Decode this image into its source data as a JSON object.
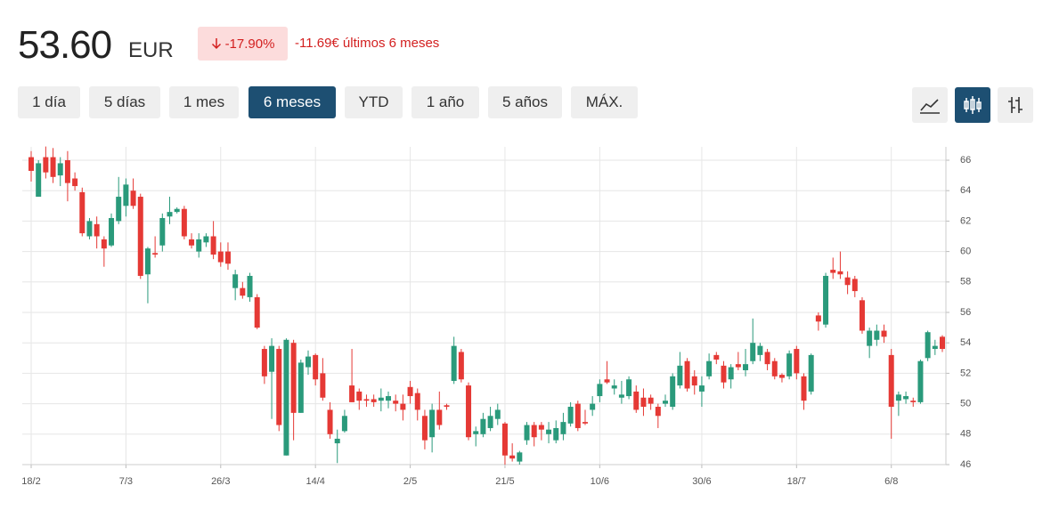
{
  "header": {
    "price": "53.60",
    "currency": "EUR",
    "change_pct": "-17.90%",
    "change_abs": "-11.69€ últimos 6 meses"
  },
  "range_buttons": [
    "1 día",
    "5 días",
    "1 mes",
    "6 meses",
    "YTD",
    "1 año",
    "5 años",
    "MÁX."
  ],
  "chart_data": {
    "type": "candlestick",
    "up_color": "#2a9a7b",
    "down_color": "#e53935",
    "grid": true,
    "categories": [
      "18/2",
      null,
      null,
      null,
      null,
      null,
      null,
      null,
      null,
      null,
      null,
      null,
      null,
      "7/3",
      null,
      null,
      null,
      null,
      null,
      null,
      null,
      null,
      null,
      null,
      null,
      null,
      "26/3",
      null,
      null,
      null,
      null,
      null,
      null,
      null,
      null,
      null,
      null,
      null,
      null,
      "14/4",
      null,
      null,
      null,
      null,
      null,
      null,
      null,
      null,
      null,
      null,
      null,
      null,
      "2/5",
      null,
      null,
      null,
      null,
      null,
      null,
      null,
      null,
      null,
      null,
      null,
      null,
      "21/5",
      null,
      null,
      null,
      null,
      null,
      null,
      null,
      null,
      null,
      null,
      null,
      null,
      "10/6",
      null,
      null,
      null,
      null,
      null,
      null,
      null,
      null,
      null,
      null,
      null,
      null,
      null,
      "30/6",
      null,
      null,
      null,
      null,
      null,
      null,
      null,
      null,
      null,
      null,
      null,
      null,
      "18/7",
      null,
      null,
      null,
      null,
      null,
      null,
      null,
      null,
      null,
      null,
      null,
      null,
      "6/8",
      null,
      null,
      null,
      null,
      null,
      null,
      null
    ],
    "open": [
      66.2,
      63.6,
      66.2,
      66.2,
      65.0,
      66.0,
      64.8,
      63.9,
      61.0,
      61.8,
      60.8,
      60.4,
      62.0,
      63.0,
      64.0,
      63.6,
      58.5,
      59.9,
      60.4,
      62.3,
      62.6,
      62.8,
      60.8,
      60.0,
      60.6,
      61.0,
      60.0,
      60.0,
      57.6,
      57.6,
      57.0,
      57.0,
      53.6,
      52.1,
      53.6,
      46.6,
      54.0,
      49.4,
      52.4,
      53.2,
      52.0,
      49.6,
      47.4,
      48.2,
      51.2,
      50.8,
      50.3,
      50.3,
      50.2,
      50.2,
      50.2,
      50.0,
      51.1,
      50.7,
      49.2,
      47.8,
      49.6,
      49.9,
      51.5,
      53.4,
      51.2,
      48.0,
      48.0,
      48.4,
      49.0,
      48.7,
      46.6,
      46.2,
      47.6,
      48.6,
      48.6,
      48.0,
      47.6,
      48.0,
      48.7,
      50.0,
      48.8,
      49.6,
      50.5,
      51.6,
      51.0,
      50.4,
      50.5,
      50.8,
      50.4,
      50.4,
      49.8,
      50.0,
      49.8,
      51.2,
      52.8,
      51.8,
      50.8,
      51.8,
      53.2,
      52.5,
      51.6,
      52.6,
      52.2,
      52.8,
      53.2,
      53.4,
      52.8,
      51.9,
      51.8,
      53.6,
      51.8,
      50.8,
      55.8,
      55.2,
      58.8,
      58.7,
      58.3,
      58.2,
      56.8,
      53.8,
      54.2,
      54.8,
      53.2,
      50.2,
      50.3,
      50.2,
      50.1,
      53.0,
      53.6,
      54.4
    ],
    "high": [
      66.6,
      66.0,
      66.9,
      66.8,
      66.2,
      66.6,
      65.2,
      64.2,
      62.2,
      62.3,
      61.0,
      62.5,
      64.9,
      64.8,
      64.8,
      63.8,
      60.3,
      61.0,
      62.5,
      63.6,
      62.9,
      63.0,
      61.2,
      61.2,
      61.2,
      62.0,
      60.6,
      60.6,
      58.8,
      58.0,
      58.6,
      57.2,
      53.8,
      54.3,
      53.8,
      54.3,
      54.2,
      52.9,
      53.5,
      53.3,
      53.0,
      50.1,
      48.3,
      49.6,
      53.6,
      51.0,
      50.6,
      50.6,
      51.0,
      50.8,
      50.6,
      50.6,
      51.5,
      51.0,
      49.6,
      50.0,
      50.8,
      50.0,
      54.4,
      53.6,
      51.4,
      48.5,
      49.4,
      49.8,
      50.0,
      48.8,
      47.4,
      46.9,
      48.8,
      48.8,
      48.8,
      48.8,
      48.9,
      49.4,
      50.1,
      50.2,
      49.6,
      50.5,
      51.6,
      52.8,
      51.6,
      51.5,
      51.8,
      51.2,
      51.0,
      50.6,
      50.0,
      50.6,
      52.0,
      53.4,
      53.0,
      52.2,
      51.8,
      53.3,
      53.4,
      52.8,
      52.6,
      53.4,
      53.6,
      55.6,
      54.0,
      53.6,
      53.0,
      52.0,
      53.5,
      53.8,
      52.0,
      53.3,
      56.0,
      58.6,
      59.6,
      60.0,
      58.7,
      58.4,
      57.0,
      55.0,
      55.2,
      55.2,
      53.6,
      50.8,
      50.8,
      50.4,
      52.9,
      54.8,
      54.2,
      54.5
    ],
    "low": [
      64.6,
      63.6,
      64.8,
      64.5,
      64.3,
      63.3,
      64.0,
      61.0,
      60.8,
      60.2,
      59.0,
      60.3,
      61.8,
      62.3,
      62.8,
      58.2,
      56.6,
      59.6,
      60.0,
      61.8,
      62.5,
      60.8,
      60.2,
      59.6,
      60.3,
      59.5,
      59.0,
      58.8,
      56.8,
      56.9,
      56.7,
      54.9,
      51.3,
      49.0,
      48.2,
      46.6,
      47.6,
      49.4,
      51.9,
      51.2,
      50.2,
      47.7,
      46.1,
      48.1,
      50.1,
      49.6,
      49.8,
      49.8,
      49.5,
      49.7,
      49.5,
      48.9,
      50.0,
      48.9,
      47.0,
      46.8,
      48.3,
      49.6,
      51.3,
      51.4,
      47.6,
      47.2,
      47.8,
      48.2,
      48.6,
      46.0,
      46.2,
      46.0,
      47.3,
      47.2,
      47.6,
      47.4,
      47.4,
      47.6,
      48.5,
      48.2,
      48.6,
      49.2,
      50.1,
      51.3,
      50.6,
      50.0,
      50.3,
      49.4,
      49.2,
      49.6,
      48.4,
      49.8,
      49.6,
      51.0,
      50.8,
      50.6,
      49.8,
      51.6,
      52.6,
      51.0,
      51.0,
      52.2,
      51.8,
      52.6,
      52.8,
      52.2,
      51.6,
      51.4,
      51.6,
      51.6,
      49.6,
      50.6,
      54.8,
      55.0,
      58.2,
      58.2,
      57.2,
      57.0,
      54.6,
      53.0,
      53.8,
      54.0,
      47.7,
      49.2,
      50.0,
      49.8,
      50.0,
      52.8,
      53.2,
      53.4
    ],
    "close": [
      65.3,
      65.8,
      65.2,
      64.9,
      65.8,
      64.5,
      64.3,
      61.2,
      62.0,
      61.0,
      60.2,
      62.2,
      63.6,
      64.4,
      63.0,
      58.4,
      60.2,
      59.8,
      62.2,
      62.6,
      62.8,
      61.0,
      60.4,
      60.8,
      61.0,
      59.8,
      59.3,
      59.2,
      58.5,
      57.1,
      58.4,
      55.0,
      51.8,
      53.8,
      48.6,
      54.2,
      49.4,
      52.7,
      53.1,
      51.6,
      50.4,
      48.0,
      47.7,
      49.2,
      50.1,
      50.2,
      50.2,
      50.1,
      50.4,
      50.5,
      50.0,
      49.6,
      50.5,
      49.6,
      47.6,
      49.6,
      48.6,
      49.8,
      53.8,
      51.6,
      47.8,
      48.2,
      49.0,
      49.2,
      49.6,
      46.6,
      46.4,
      46.8,
      48.6,
      47.8,
      48.3,
      48.3,
      48.4,
      48.8,
      49.8,
      48.4,
      48.7,
      50.0,
      51.3,
      51.4,
      51.2,
      50.6,
      51.6,
      49.6,
      49.8,
      50.0,
      49.2,
      50.2,
      51.8,
      52.5,
      51.0,
      51.2,
      51.2,
      52.8,
      52.9,
      51.4,
      52.4,
      52.4,
      52.6,
      54.0,
      53.8,
      52.6,
      51.8,
      51.7,
      53.3,
      52.0,
      50.2,
      53.2,
      55.4,
      58.4,
      58.6,
      58.5,
      57.8,
      57.4,
      54.8,
      54.8,
      54.8,
      54.4,
      49.8,
      50.6,
      50.5,
      50.1,
      52.8,
      54.7,
      53.8,
      53.6
    ],
    "ylim": [
      46,
      66
    ],
    "yticks": [
      46,
      48,
      50,
      52,
      54,
      56,
      58,
      60,
      62,
      64,
      66
    ]
  }
}
